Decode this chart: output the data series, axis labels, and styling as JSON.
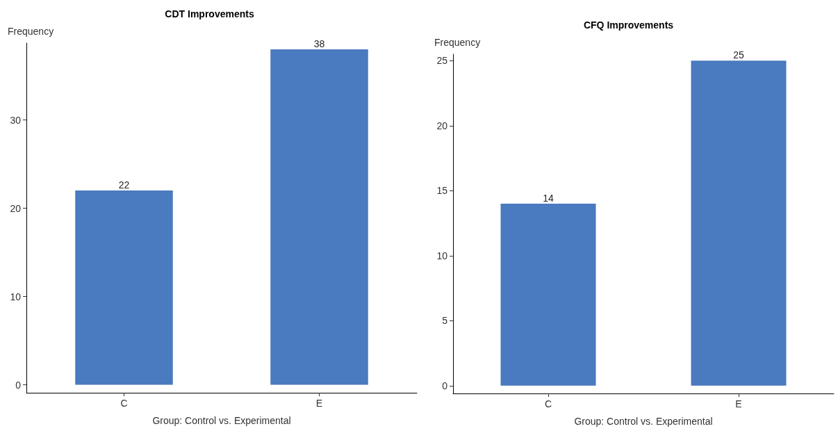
{
  "chart_data": [
    {
      "type": "bar",
      "title": "CDT Improvements",
      "xlabel": "Group: Control vs. Experimental",
      "ylabel": "Frequency",
      "categories": [
        "C",
        "E"
      ],
      "values": [
        22,
        38
      ],
      "color": "#4a7abf",
      "ylim": [
        -0.9,
        38.7
      ],
      "yticks": [
        0,
        10,
        20,
        30
      ],
      "data_labels": true
    },
    {
      "type": "bar",
      "title": "CFQ Improvements",
      "xlabel": "Group: Control vs. Experimental",
      "ylabel": "Frequency",
      "categories": [
        "C",
        "E"
      ],
      "values": [
        14,
        25
      ],
      "color": "#4a7abf",
      "ylim": [
        -0.6,
        25.5
      ],
      "yticks": [
        0,
        5,
        10,
        15,
        20,
        25
      ],
      "data_labels": true
    }
  ]
}
